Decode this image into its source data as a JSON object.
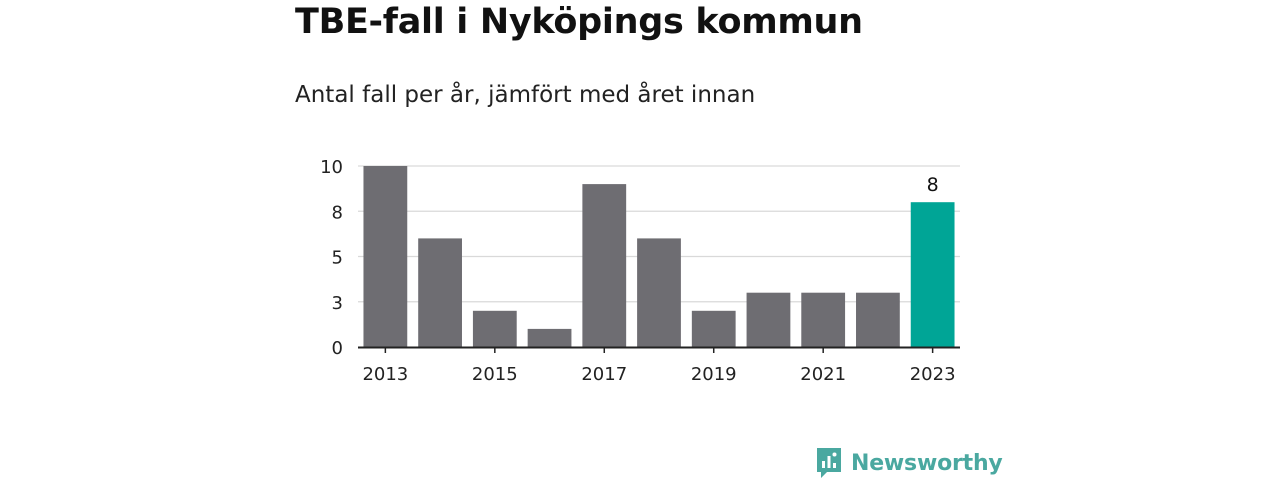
{
  "title": "TBE-fall i Nyköpings kommun",
  "subtitle": "Antal fall per år, jämfört med året innan",
  "chart_data": {
    "type": "bar",
    "categories": [
      "2013",
      "2014",
      "2015",
      "2016",
      "2017",
      "2018",
      "2019",
      "2020",
      "2021",
      "2022",
      "2023"
    ],
    "values": [
      10,
      6,
      2,
      1,
      9,
      6,
      2,
      3,
      3,
      3,
      8
    ],
    "x_tick_labels": [
      "2013",
      "2015",
      "2017",
      "2019",
      "2021",
      "2023"
    ],
    "y_tick_labels": [
      "0",
      "3",
      "5",
      "8",
      "10"
    ],
    "y_tick_values": [
      0,
      2.5,
      5,
      7.5,
      10
    ],
    "ylim": [
      0,
      10
    ],
    "grid": true,
    "highlight_index": 10,
    "highlight_label": "8",
    "colors": {
      "bar": "#6e6d72",
      "highlight": "#00a596",
      "grid": "#d9d9d9",
      "axis": "#222222"
    }
  },
  "brand": {
    "name": "Newsworthy",
    "logo_icon": "bar-chart-speech-bubble-icon",
    "color": "#4aa8a0"
  }
}
